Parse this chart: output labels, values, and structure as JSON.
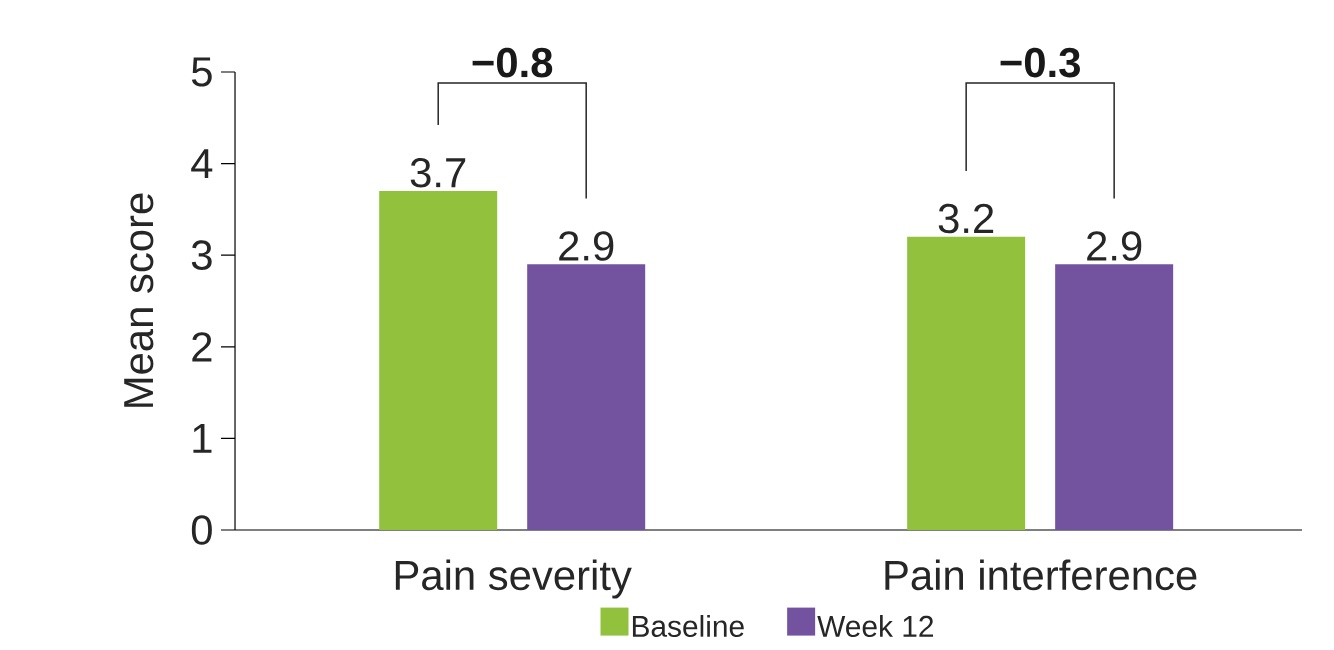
{
  "chart_data": {
    "type": "bar",
    "ylabel": "Mean score",
    "categories": [
      "Pain severity",
      "Pain interference"
    ],
    "series": [
      {
        "name": "Baseline",
        "color": "#92c13e",
        "values": [
          3.7,
          3.2
        ]
      },
      {
        "name": "Week 12",
        "color": "#7352a0",
        "values": [
          2.9,
          2.9
        ]
      }
    ],
    "ylim": [
      0,
      5
    ],
    "yticks": [
      0,
      1,
      2,
      3,
      4,
      5
    ],
    "data_labels": true,
    "legend": "bottom",
    "grid": false,
    "annotations": [
      "**−0.8**",
      "**−0.3**"
    ]
  }
}
